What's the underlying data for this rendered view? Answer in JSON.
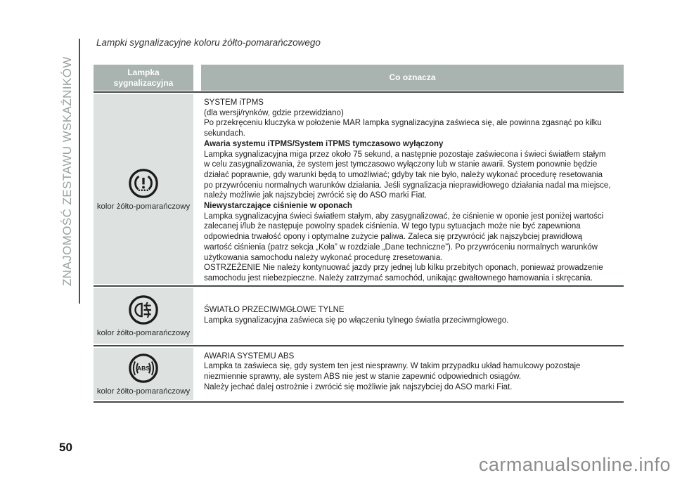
{
  "page": {
    "sidebar_label": "ZNAJOMOŚĆ ZESTAWU WSKAŹNIKÓW",
    "number": "50",
    "title": "Lampki sygnalizacyjne koloru żółto-pomarańczowego",
    "watermark": "carmanualsonline.info"
  },
  "colors": {
    "header_bg": "#a9b3b0",
    "left_column_bg": "#dde2e0",
    "separator": "#454a48",
    "sidebar_text": "#98a19e",
    "watermark_text": "#8d8d8d"
  },
  "table": {
    "header_left": "Lampka\nsygnalizacyjna",
    "header_right": "Co oznacza",
    "rows": [
      {
        "icon": "tpms-icon",
        "color_label": "kolor żółto-pomarańczowy",
        "valign": "top",
        "lines": [
          {
            "bold": false,
            "text": "SYSTEM iTPMS"
          },
          {
            "bold": false,
            "text": "(dla wersji/rynków, gdzie przewidziano)"
          },
          {
            "bold": false,
            "text": "Po przekręceniu kluczyka w położenie MAR lampka sygnalizacyjna zaświeca się, ale powinna zgasnąć po kilku"
          },
          {
            "bold": false,
            "text": "sekundach."
          },
          {
            "bold": true,
            "text": "Awaria systemu iTPMS/System iTPMS tymczasowo wyłączony"
          },
          {
            "bold": false,
            "text": "Lampka sygnalizacyjna miga przez około 75 sekund, a następnie pozostaje zaświecona i świeci światłem stałym"
          },
          {
            "bold": false,
            "text": "w celu zasygnalizowania, że system jest tymczasowo wyłączony lub w stanie awarii. System ponownie będzie"
          },
          {
            "bold": false,
            "text": "działać poprawnie, gdy warunki będą to umożliwiać; gdyby tak nie było, należy wykonać procedurę resetowania"
          },
          {
            "bold": false,
            "text": "po przywróceniu normalnych warunków działania. Jeśli sygnalizacja nieprawidłowego działania nadal ma miejsce,"
          },
          {
            "bold": false,
            "text": "należy możliwie jak najszybciej zwrócić się do ASO marki Fiat."
          },
          {
            "bold": true,
            "text": "Niewystarczające ciśnienie w oponach"
          },
          {
            "bold": false,
            "text": "Lampka sygnalizacyjna świeci światłem stałym, aby zasygnalizować, że ciśnienie w oponie jest poniżej wartości"
          },
          {
            "bold": false,
            "text": "zalecanej i/lub że następuje powolny spadek ciśnienia. W tego typu sytuacjach może nie być zapewniona"
          },
          {
            "bold": false,
            "text": "odpowiednia trwałość opony i optymalne zużycie paliwa. Zaleca się przywrócić jak najszybciej prawidłową"
          },
          {
            "bold": false,
            "text": "wartość ciśnienia (patrz sekcja „Koła” w rozdziale „Dane techniczne”). Po przywróceniu normalnych warunków"
          },
          {
            "bold": false,
            "text": "użytkowania samochodu należy wykonać procedurę zresetowania."
          },
          {
            "bold": false,
            "text": "OSTRZEŻENIE Nie należy kontynuować jazdy przy jednej lub kilku przebitych oponach, ponieważ prowadzenie"
          },
          {
            "bold": false,
            "text": "samochodu jest niebezpieczne. Należy zatrzymać samochód, unikając gwałtownego hamowania i skręcania."
          }
        ]
      },
      {
        "icon": "rear-fog-light-icon",
        "color_label": "kolor żółto-pomarańczowy",
        "valign": "center",
        "lines": [
          {
            "bold": false,
            "text": "ŚWIATŁO PRZECIWMGŁOWE TYLNE"
          },
          {
            "bold": false,
            "text": "Lampka sygnalizacyjna zaświeca się po włączeniu tylnego światła przeciwmgłowego."
          }
        ]
      },
      {
        "icon": "abs-icon",
        "color_label": "kolor żółto-pomarańczowy",
        "valign": "top",
        "lines": [
          {
            "bold": false,
            "text": "AWARIA SYSTEMU ABS"
          },
          {
            "bold": false,
            "text": "Lampka ta zaświeca się, gdy system ten jest niesprawny. W takim przypadku układ hamulcowy pozostaje"
          },
          {
            "bold": false,
            "text": "niezmiennie sprawny, ale system ABS nie jest w stanie zapewnić odpowiednich osiągów."
          },
          {
            "bold": false,
            "text": "Należy jechać dalej ostrożnie i zwrócić się możliwie jak najszybciej do ASO marki Fiat."
          }
        ]
      }
    ]
  }
}
